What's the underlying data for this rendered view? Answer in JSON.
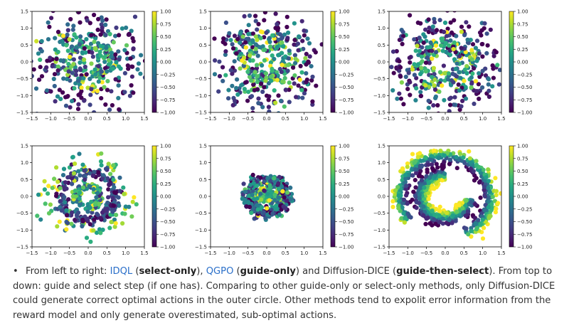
{
  "chart_data": [
    {
      "type": "scatter",
      "panel": "top-left",
      "method": "IDQL",
      "pattern": "ring-noise",
      "n_points": 400,
      "xlim": [
        -1.5,
        1.5
      ],
      "ylim": [
        -1.5,
        1.5
      ],
      "x_ticks": [
        "-1.5",
        "-1.0",
        "-0.5",
        "0.0",
        "0.5",
        "1.0",
        "1.5"
      ],
      "y_ticks": [
        "-1.5",
        "-1.0",
        "-0.5",
        "0.0",
        "0.5",
        "1.0",
        "1.5"
      ],
      "colorbar_ticks": [
        "1.00",
        "0.75",
        "0.50",
        "0.25",
        "0.00",
        "-0.25",
        "-0.50",
        "-0.75",
        "-1.00"
      ],
      "colorbar_range": [
        -1,
        1
      ],
      "colormap": "viridis",
      "seed": 11
    },
    {
      "type": "scatter",
      "panel": "top-middle",
      "method": "QGPO",
      "pattern": "ring-noise",
      "n_points": 400,
      "xlim": [
        -1.5,
        1.5
      ],
      "ylim": [
        -1.5,
        1.5
      ],
      "x_ticks": [
        "-1.5",
        "-1.0",
        "-0.5",
        "0.0",
        "0.5",
        "1.0",
        "1.5"
      ],
      "y_ticks": [
        "-1.5",
        "-1.0",
        "-0.5",
        "0.0",
        "0.5",
        "1.0",
        "1.5"
      ],
      "colorbar_ticks": [
        "1.00",
        "0.75",
        "0.50",
        "0.25",
        "0.00",
        "-0.25",
        "-0.50",
        "-0.75",
        "-1.00"
      ],
      "colorbar_range": [
        -1,
        1
      ],
      "colormap": "viridis",
      "seed": 23
    },
    {
      "type": "scatter",
      "panel": "top-right",
      "method": "Diffusion-DICE",
      "pattern": "ring-noise",
      "n_points": 400,
      "xlim": [
        -1.5,
        1.5
      ],
      "ylim": [
        -1.5,
        1.5
      ],
      "x_ticks": [
        "-1.5",
        "-1.0",
        "-0.5",
        "0.0",
        "0.5",
        "1.0",
        "1.5"
      ],
      "y_ticks": [
        "-1.5",
        "-1.0",
        "-0.5",
        "0.0",
        "0.5",
        "1.0",
        "1.5"
      ],
      "colorbar_ticks": [
        "1.00",
        "0.75",
        "0.50",
        "0.25",
        "0.00",
        "-0.25",
        "-0.50",
        "-0.75",
        "-1.00"
      ],
      "colorbar_range": [
        -1,
        1
      ],
      "colormap": "viridis",
      "seed": 37
    },
    {
      "type": "scatter",
      "panel": "bottom-left",
      "method": "IDQL",
      "pattern": "concentric",
      "n_points": 420,
      "xlim": [
        -1.5,
        1.5
      ],
      "ylim": [
        -1.5,
        1.5
      ],
      "x_ticks": [
        "-1.5",
        "-1.0",
        "-0.5",
        "0.0",
        "0.5",
        "1.0",
        "1.5"
      ],
      "y_ticks": [
        "-1.5",
        "-1.0",
        "-0.5",
        "0.0",
        "0.5",
        "1.0",
        "1.5"
      ],
      "colorbar_ticks": [
        "1.00",
        "0.75",
        "0.50",
        "0.25",
        "0.00",
        "-0.25",
        "-0.50",
        "-0.75",
        "-1.00"
      ],
      "colorbar_range": [
        -1,
        1
      ],
      "colormap": "viridis",
      "seed": 51
    },
    {
      "type": "scatter",
      "panel": "bottom-middle",
      "method": "QGPO",
      "pattern": "small-ring",
      "n_points": 380,
      "xlim": [
        -1.5,
        1.5
      ],
      "ylim": [
        -1.5,
        1.5
      ],
      "x_ticks": [
        "-1.5",
        "-1.0",
        "-0.5",
        "0.0",
        "0.5",
        "1.0",
        "1.5"
      ],
      "y_ticks": [
        "-1.5",
        "-1.0",
        "-0.5",
        "0.0",
        "0.5",
        "1.0",
        "1.5"
      ],
      "colorbar_ticks": [
        "1.00",
        "0.75",
        "0.50",
        "0.25",
        "0.00",
        "-0.25",
        "-0.50",
        "-0.75",
        "-1.00"
      ],
      "colorbar_range": [
        -1,
        1
      ],
      "colormap": "viridis",
      "seed": 67
    },
    {
      "type": "scatter",
      "panel": "bottom-right",
      "method": "Diffusion-DICE",
      "pattern": "swirl",
      "n_points": 750,
      "xlim": [
        -1.5,
        1.5
      ],
      "ylim": [
        -1.5,
        1.5
      ],
      "x_ticks": [
        "-1.5",
        "-1.0",
        "-0.5",
        "0.0",
        "0.5",
        "1.0",
        "1.5"
      ],
      "y_ticks": [
        "-1.5",
        "-1.0",
        "-0.5",
        "0.0",
        "0.5",
        "1.0",
        "1.5"
      ],
      "colorbar_ticks": [
        "1.00",
        "0.75",
        "0.50",
        "0.25",
        "0.00",
        "-0.25",
        "-0.50",
        "-0.75",
        "-1.00"
      ],
      "colorbar_range": [
        -1,
        1
      ],
      "colormap": "viridis",
      "seed": 83
    }
  ],
  "caption": {
    "part1": "From left to right: ",
    "link1": "IDQL",
    "part2": " (",
    "bold1": "select-only",
    "part3": "), ",
    "link2": "QGPO",
    "part4": " (",
    "bold2": "guide-only",
    "part5": ") and Diffusion-DICE (",
    "bold3": "guide-then-select",
    "part6": "). From top to down: guide and select step (if one has). Comparing to other guide-only or select-only methods, only Diffusion-DICE could generate correct optimal actions in the outer circle. Other methods tend to expolit error information from the reward model and only generate overestimated, sub-optimal actions."
  },
  "colors": {
    "link": "#2a6fc9",
    "text": "#333333",
    "viridis_low": "#440154",
    "viridis_mid": "#21918c",
    "viridis_high": "#fde725"
  }
}
